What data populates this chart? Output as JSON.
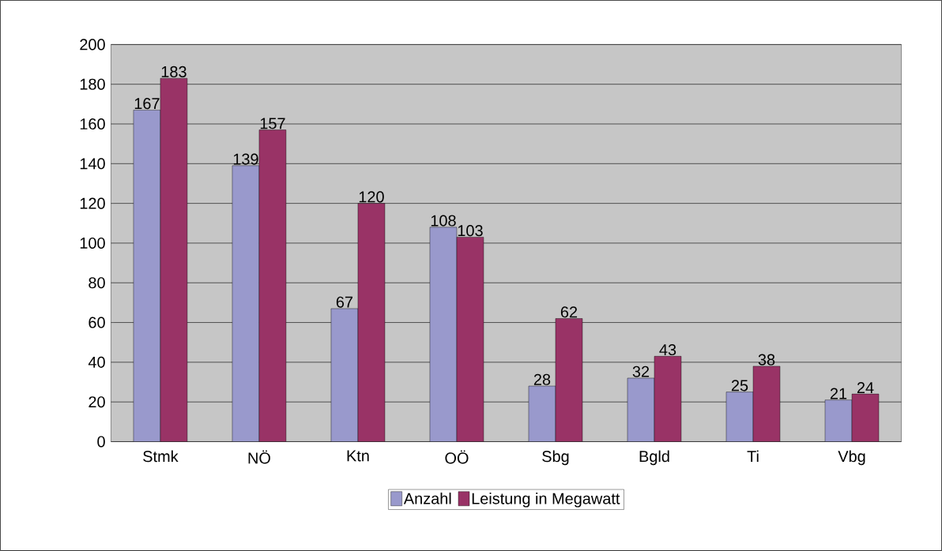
{
  "chart_data": {
    "type": "bar",
    "categories": [
      "Stmk",
      "NÖ",
      "Ktn",
      "OÖ",
      "Sbg",
      "Bgld",
      "Ti",
      "Vbg"
    ],
    "series": [
      {
        "name": "Anzahl",
        "color": "#9999cc",
        "values": [
          167,
          139,
          67,
          108,
          28,
          32,
          25,
          21
        ]
      },
      {
        "name": "Leistung in Megawatt",
        "color": "#993366",
        "values": [
          183,
          157,
          120,
          103,
          62,
          43,
          38,
          24
        ]
      }
    ],
    "ylim": [
      0,
      200
    ],
    "yticks": [
      0,
      20,
      40,
      60,
      80,
      100,
      120,
      140,
      160,
      180,
      200
    ],
    "grid": "y",
    "legend": "bottom",
    "data_labels": true
  }
}
